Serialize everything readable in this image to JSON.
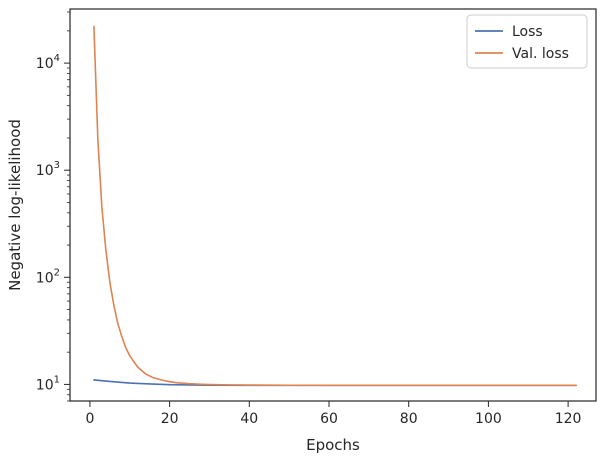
{
  "chart_data": {
    "type": "line",
    "xlabel": "Epochs",
    "ylabel": "Negative log-likelihood",
    "yscale": "log",
    "xlim": [
      -5,
      127
    ],
    "ylim": [
      7,
      32000
    ],
    "xticks": [
      0,
      20,
      40,
      60,
      80,
      100,
      120
    ],
    "yticks": [
      {
        "value": 10,
        "base": "10",
        "exp": "1"
      },
      {
        "value": 100,
        "base": "10",
        "exp": "2"
      },
      {
        "value": 1000,
        "base": "10",
        "exp": "3"
      },
      {
        "value": 10000,
        "base": "10",
        "exp": "4"
      }
    ],
    "legend_position": "top-right",
    "grid": false,
    "series": [
      {
        "name": "Loss",
        "color": "#4c72b0",
        "x": [
          1,
          5,
          10,
          15,
          20,
          25,
          30,
          40,
          60,
          80,
          100,
          122
        ],
        "y": [
          11.0,
          10.65,
          10.3,
          10.1,
          9.95,
          9.88,
          9.84,
          9.81,
          9.8,
          9.8,
          9.8,
          9.8
        ]
      },
      {
        "name": "Val. loss",
        "color": "#dd8452",
        "x": [
          1,
          2,
          3,
          4,
          5,
          6,
          7,
          8,
          9,
          10,
          12,
          14,
          16,
          18,
          20,
          22,
          25,
          28,
          30,
          35,
          40,
          50,
          60,
          80,
          100,
          122
        ],
        "y": [
          22000,
          1900,
          450,
          180,
          90,
          55,
          37,
          28,
          22,
          18.5,
          14.5,
          12.5,
          11.5,
          11.0,
          10.6,
          10.35,
          10.15,
          10.02,
          9.97,
          9.9,
          9.86,
          9.82,
          9.81,
          9.8,
          9.8,
          9.8
        ]
      }
    ]
  }
}
